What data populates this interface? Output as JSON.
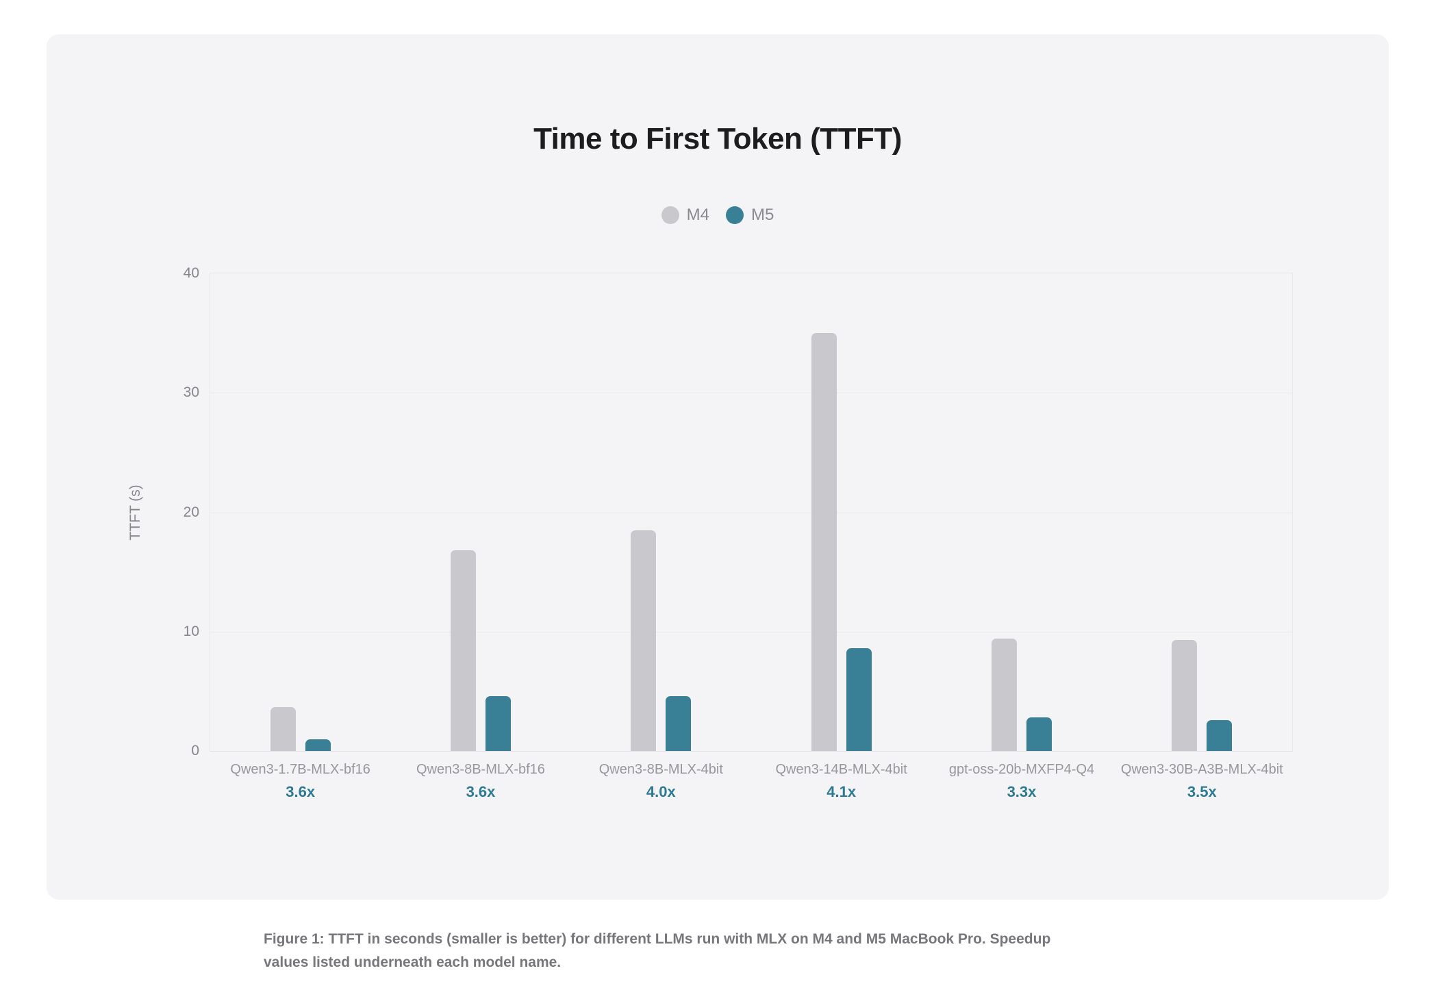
{
  "page": {
    "caption_line1": "Figure 1: TTFT in seconds (smaller is better) for different LLMs run with MLX on M4 and M5 MacBook Pro. Speedup",
    "caption_line2": "values listed underneath each model name."
  },
  "colors": {
    "card_bg": "#f4f4f6",
    "title_text": "#1d1d1f",
    "axis_text": "#86868b",
    "xlabel_text": "#97979c",
    "speedup_text": "#2e7a93",
    "caption_text": "#76767b",
    "gridline": "#ebebed",
    "plot_border": "#e8e8ea",
    "m4_bar": "#c8c8cd",
    "m5_bar": "#397f95"
  },
  "chart_data": {
    "type": "bar",
    "title": "Time to First Token (TTFT)",
    "xlabel": "",
    "ylabel": "TTFT (s)",
    "ylim": [
      0,
      40
    ],
    "yticks": [
      0,
      10,
      20,
      30,
      40
    ],
    "grid": true,
    "legend_position": "top-center",
    "categories": [
      "Qwen3-1.7B-MLX-bf16",
      "Qwen3-8B-MLX-bf16",
      "Qwen3-8B-MLX-4bit",
      "Qwen3-14B-MLX-4bit",
      "gpt-oss-20b-MXFP4-Q4",
      "Qwen3-30B-A3B-MLX-4bit"
    ],
    "speedups": [
      "3.6x",
      "3.6x",
      "4.0x",
      "4.1x",
      "3.3x",
      "3.5x"
    ],
    "series": [
      {
        "name": "M4",
        "color": "#c8c8cd",
        "values": [
          3.7,
          16.8,
          18.5,
          35.0,
          9.4,
          9.3
        ]
      },
      {
        "name": "M5",
        "color": "#397f95",
        "values": [
          1.0,
          4.6,
          4.6,
          8.6,
          2.8,
          2.6
        ]
      }
    ]
  }
}
